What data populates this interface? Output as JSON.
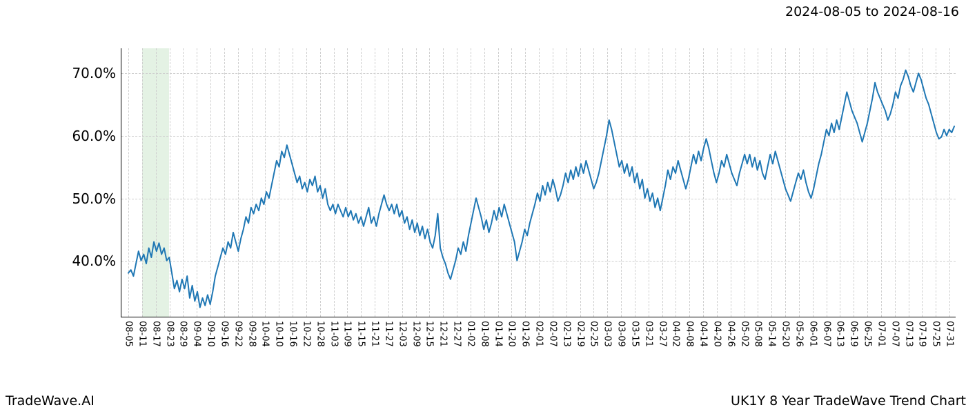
{
  "date_range_label": "2024-08-05 to 2024-08-16",
  "footer_left": "TradeWave.AI",
  "footer_right": "UK1Y 8 Year TradeWave Trend Chart",
  "chart": {
    "type": "line",
    "line_color": "#1f77b4",
    "line_width": 2,
    "background_color": "#ffffff",
    "grid_color": "#cfcfcf",
    "axis_color": "#000000",
    "ylim": [
      31,
      74
    ],
    "yticks": [
      40,
      50,
      60,
      70
    ],
    "ytick_labels": [
      "40.0%",
      "50.0%",
      "60.0%",
      "70.0%"
    ],
    "ytick_fontsize": 20,
    "xtick_labels": [
      "08-05",
      "08-11",
      "08-17",
      "08-23",
      "08-29",
      "09-04",
      "09-10",
      "09-16",
      "09-22",
      "09-28",
      "10-04",
      "10-10",
      "10-16",
      "10-22",
      "10-28",
      "11-03",
      "11-09",
      "11-15",
      "11-21",
      "11-27",
      "12-03",
      "12-09",
      "12-15",
      "12-21",
      "12-27",
      "01-02",
      "01-08",
      "01-14",
      "01-20",
      "01-26",
      "02-01",
      "02-07",
      "02-13",
      "02-19",
      "02-25",
      "03-03",
      "03-09",
      "03-15",
      "03-21",
      "03-27",
      "04-02",
      "04-08",
      "04-14",
      "04-20",
      "04-26",
      "05-02",
      "05-08",
      "05-14",
      "05-20",
      "05-26",
      "06-01",
      "06-07",
      "06-13",
      "06-19",
      "06-25",
      "07-01",
      "07-07",
      "07-13",
      "07-19",
      "07-25",
      "07-31"
    ],
    "xtick_fontsize": 13,
    "xtick_rotation": 90,
    "highlight_band": {
      "start_index": 1,
      "end_index": 3,
      "color": "#d8ecd8",
      "opacity": 0.7
    },
    "series": [
      38.0,
      38.5,
      37.5,
      39.5,
      41.5,
      40.0,
      41.0,
      39.5,
      42.0,
      40.5,
      43.0,
      41.5,
      42.8,
      41.0,
      42.0,
      40.0,
      40.5,
      38.0,
      35.5,
      36.8,
      35.0,
      37.0,
      35.5,
      37.5,
      34.0,
      36.0,
      33.5,
      35.0,
      32.5,
      34.0,
      32.8,
      34.5,
      33.0,
      35.0,
      37.5,
      39.0,
      40.5,
      42.0,
      41.0,
      43.0,
      42.0,
      44.5,
      43.0,
      41.5,
      43.5,
      45.0,
      47.0,
      46.0,
      48.5,
      47.5,
      49.0,
      48.0,
      50.0,
      49.0,
      51.0,
      50.0,
      52.0,
      54.0,
      56.0,
      55.0,
      57.5,
      56.5,
      58.5,
      57.0,
      55.5,
      54.0,
      52.5,
      53.5,
      51.5,
      52.5,
      51.0,
      53.0,
      52.0,
      53.5,
      51.0,
      52.0,
      50.0,
      51.5,
      49.0,
      48.0,
      49.0,
      47.5,
      49.0,
      48.0,
      47.0,
      48.5,
      47.0,
      48.0,
      46.5,
      47.5,
      46.0,
      47.0,
      45.5,
      47.0,
      48.5,
      46.0,
      47.0,
      45.5,
      47.5,
      49.0,
      50.5,
      49.0,
      48.0,
      49.0,
      47.5,
      49.0,
      47.0,
      48.0,
      46.0,
      47.0,
      45.0,
      46.5,
      44.5,
      46.0,
      44.0,
      45.5,
      43.5,
      45.0,
      43.0,
      42.0,
      44.0,
      47.5,
      42.0,
      40.5,
      39.5,
      38.0,
      37.0,
      38.5,
      40.0,
      42.0,
      41.0,
      43.0,
      41.5,
      44.0,
      46.0,
      48.0,
      50.0,
      48.5,
      47.0,
      45.0,
      46.5,
      44.5,
      46.0,
      48.0,
      46.5,
      48.5,
      47.0,
      49.0,
      47.5,
      46.0,
      44.5,
      43.0,
      40.0,
      41.5,
      43.0,
      45.0,
      44.0,
      46.0,
      47.5,
      49.0,
      50.8,
      49.5,
      52.0,
      50.5,
      52.5,
      51.0,
      53.0,
      51.5,
      49.5,
      50.5,
      52.0,
      54.0,
      52.5,
      54.5,
      53.0,
      55.0,
      53.5,
      55.5,
      54.0,
      56.0,
      54.5,
      53.0,
      51.5,
      52.5,
      54.0,
      56.0,
      58.0,
      60.0,
      62.5,
      61.0,
      59.0,
      57.0,
      55.0,
      56.0,
      54.0,
      55.5,
      53.5,
      55.0,
      52.5,
      54.0,
      51.5,
      53.0,
      50.0,
      51.5,
      49.5,
      50.8,
      48.5,
      50.0,
      48.0,
      50.0,
      52.0,
      54.5,
      53.0,
      55.0,
      54.0,
      56.0,
      54.5,
      53.0,
      51.5,
      53.0,
      55.0,
      57.0,
      55.5,
      57.5,
      56.0,
      58.0,
      59.5,
      58.0,
      56.0,
      54.0,
      52.5,
      54.0,
      56.0,
      55.0,
      57.0,
      55.5,
      54.0,
      53.0,
      52.0,
      54.0,
      55.5,
      57.0,
      55.5,
      57.0,
      55.0,
      56.5,
      54.5,
      56.0,
      54.0,
      53.0,
      55.0,
      57.0,
      55.5,
      57.5,
      56.0,
      54.5,
      53.0,
      51.5,
      50.5,
      49.5,
      51.0,
      52.5,
      54.0,
      53.0,
      54.5,
      52.5,
      51.0,
      50.0,
      51.5,
      53.5,
      55.5,
      57.0,
      59.0,
      61.0,
      60.0,
      62.0,
      60.5,
      62.5,
      61.0,
      63.0,
      65.0,
      67.0,
      65.5,
      64.0,
      63.0,
      62.0,
      60.5,
      59.0,
      60.5,
      62.0,
      64.0,
      66.0,
      68.5,
      67.0,
      66.0,
      65.0,
      64.0,
      62.5,
      63.5,
      65.0,
      67.0,
      66.0,
      68.0,
      69.0,
      70.5,
      69.5,
      68.0,
      67.0,
      68.5,
      70.0,
      69.0,
      67.5,
      66.0,
      65.0,
      63.5,
      62.0,
      60.5,
      59.5,
      59.8,
      61.0,
      60.0,
      61.0,
      60.5,
      61.5
    ]
  }
}
